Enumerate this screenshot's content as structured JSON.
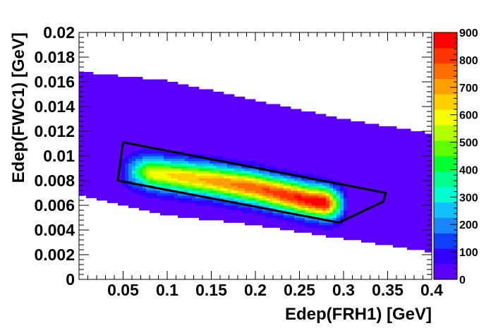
{
  "chart_data": {
    "type": "heatmap",
    "title": "",
    "xlabel": "Edep(FRH1) [GeV]",
    "ylabel": "Edep(FWC1) [GeV]",
    "xlim": [
      0,
      0.4
    ],
    "ylim": [
      0,
      0.02
    ],
    "x_ticks": [
      "0.05",
      "0.1",
      "0.15",
      "0.2",
      "0.25",
      "0.3",
      "0.35",
      "0.4"
    ],
    "y_ticks": [
      "0",
      "0.002",
      "0.004",
      "0.006",
      "0.008",
      "0.01",
      "0.012",
      "0.014",
      "0.016",
      "0.018",
      "0.02"
    ],
    "z_range": [
      0,
      900
    ],
    "z_ticks": [
      "0",
      "100",
      "200",
      "300",
      "400",
      "500",
      "600",
      "700",
      "800",
      "900"
    ],
    "colormap": [
      "#5b00ff",
      "#3200ff",
      "#1040ff",
      "#1a86ff",
      "#10c0ff",
      "#00ffd0",
      "#00ff8c",
      "#00ff30",
      "#60ff00",
      "#b4ff00",
      "#f6ff00",
      "#ffd000",
      "#ffa000",
      "#ff6c00",
      "#ff3500",
      "#ff0000"
    ],
    "grid": false,
    "distribution": {
      "band_upper_edge": [
        [
          0.002,
          0.0168
        ],
        [
          0.1,
          0.0161
        ],
        [
          0.2,
          0.0145
        ],
        [
          0.3,
          0.013
        ],
        [
          0.4,
          0.0118
        ]
      ],
      "band_lower_edge": [
        [
          0.002,
          0.0068
        ],
        [
          0.1,
          0.0052
        ],
        [
          0.2,
          0.0044
        ],
        [
          0.3,
          0.0033
        ],
        [
          0.4,
          0.0022
        ]
      ],
      "hot_ridge": [
        [
          0.07,
          0.0087
        ],
        [
          0.15,
          0.008
        ],
        [
          0.2,
          0.0074
        ],
        [
          0.26,
          0.0064
        ],
        [
          0.29,
          0.0061
        ]
      ],
      "max_location": [
        0.26,
        0.0064
      ],
      "max_counts": 880
    },
    "selection_cut": [
      [
        0.05,
        0.0111
      ],
      [
        0.348,
        0.007
      ],
      [
        0.345,
        0.0063
      ],
      [
        0.295,
        0.0046
      ],
      [
        0.044,
        0.008
      ],
      [
        0.05,
        0.0111
      ]
    ]
  }
}
